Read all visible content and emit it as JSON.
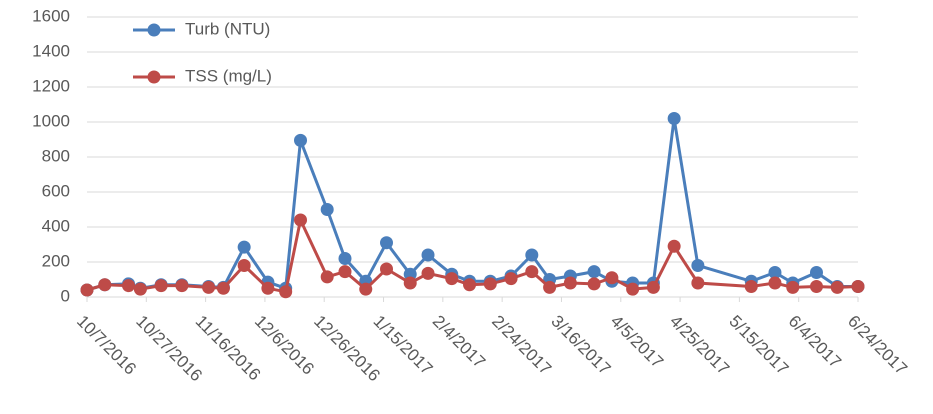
{
  "chart_data": {
    "type": "line",
    "x": [
      "10/7/2016",
      "10/13/2016",
      "10/21/2016",
      "10/25/2016",
      "11/1/2016",
      "11/8/2016",
      "11/17/2016",
      "11/22/2016",
      "11/29/2016",
      "12/7/2016",
      "12/13/2016",
      "12/18/2016",
      "12/27/2016",
      "1/2/2017",
      "1/9/2017",
      "1/16/2017",
      "1/24/2017",
      "1/30/2017",
      "2/7/2017",
      "2/13/2017",
      "2/20/2017",
      "2/27/2017",
      "3/6/2017",
      "3/12/2017",
      "3/19/2017",
      "3/27/2017",
      "4/2/2017",
      "4/9/2017",
      "4/16/2017",
      "4/23/2017",
      "5/1/2017",
      "5/19/2017",
      "5/27/2017",
      "6/2/2017",
      "6/10/2017",
      "6/17/2017",
      "6/24/2017"
    ],
    "series": [
      {
        "name": "Turb (NTU)",
        "color": "#4a7ebb",
        "values": [
          40,
          70,
          75,
          50,
          70,
          70,
          60,
          55,
          285,
          85,
          50,
          895,
          500,
          220,
          90,
          310,
          130,
          240,
          130,
          90,
          90,
          120,
          240,
          100,
          120,
          145,
          90,
          80,
          80,
          1020,
          180,
          90,
          140,
          80,
          140,
          60,
          60
        ]
      },
      {
        "name": "TSS (mg/L)",
        "color": "#be4b48",
        "values": [
          40,
          70,
          65,
          45,
          65,
          65,
          55,
          50,
          180,
          50,
          30,
          440,
          115,
          145,
          45,
          160,
          80,
          135,
          105,
          70,
          75,
          105,
          145,
          55,
          80,
          75,
          110,
          45,
          55,
          290,
          80,
          60,
          80,
          55,
          60,
          55,
          60
        ]
      }
    ],
    "xlim": [
      "10/7/2016",
      "6/24/2017"
    ],
    "xticks": [
      "10/7/2016",
      "10/27/2016",
      "11/16/2016",
      "12/6/2016",
      "12/26/2016",
      "1/15/2017",
      "2/4/2017",
      "2/24/2017",
      "3/16/2017",
      "4/5/2017",
      "4/25/2017",
      "5/15/2017",
      "6/4/2017",
      "6/24/2017"
    ],
    "ylim": [
      0,
      1600
    ],
    "yticks": [
      0,
      200,
      400,
      600,
      800,
      1000,
      1200,
      1400,
      1600
    ],
    "grid": true,
    "legend": "top-left"
  }
}
